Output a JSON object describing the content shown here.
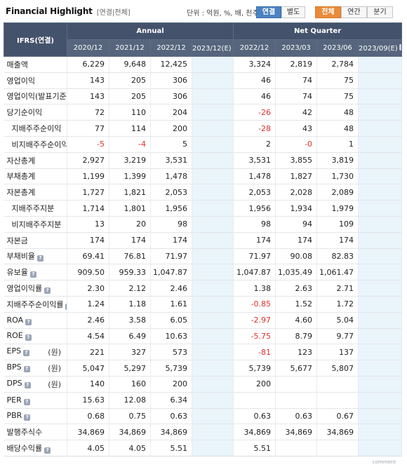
{
  "header": {
    "title": "Financial Highlight",
    "subtitle": "[연결|전체]",
    "unit": "단위 : 억원, %, 배, 천주",
    "buttons": {
      "consolidated": "연결",
      "separate": "별도",
      "all": "전체",
      "annual": "연간",
      "quarter": "분기"
    }
  },
  "table": {
    "ifrs_label": "IFRS(연결)",
    "group_annual": "Annual",
    "group_quarter": "Net Quarter",
    "columns": [
      "2020/12",
      "2021/12",
      "2022/12",
      "2023/12(E)",
      "2022/12",
      "2023/03",
      "2023/06",
      "2023/09(E)"
    ],
    "rows": [
      {
        "label": "매출액",
        "values": [
          "6,229",
          "9,648",
          "12,425",
          "",
          "3,324",
          "2,819",
          "2,784",
          ""
        ]
      },
      {
        "label": "영업이익",
        "values": [
          "143",
          "205",
          "306",
          "",
          "46",
          "74",
          "75",
          ""
        ]
      },
      {
        "label": "영업이익(발표기준)",
        "values": [
          "143",
          "205",
          "306",
          "",
          "46",
          "74",
          "75",
          ""
        ]
      },
      {
        "label": "당기순이익",
        "values": [
          "72",
          "110",
          "204",
          "",
          "-26",
          "42",
          "48",
          ""
        ]
      },
      {
        "label": "지배주주순이익",
        "sub": true,
        "values": [
          "77",
          "114",
          "200",
          "",
          "-28",
          "43",
          "48",
          ""
        ]
      },
      {
        "label": "비지배주주순이익",
        "sub": true,
        "values": [
          "-5",
          "-4",
          "5",
          "",
          "2",
          "-0",
          "1",
          ""
        ]
      },
      {
        "label": "자산총계",
        "values": [
          "2,927",
          "3,219",
          "3,531",
          "",
          "3,531",
          "3,855",
          "3,819",
          ""
        ]
      },
      {
        "label": "부채총계",
        "values": [
          "1,199",
          "1,399",
          "1,478",
          "",
          "1,478",
          "1,827",
          "1,730",
          ""
        ]
      },
      {
        "label": "자본총계",
        "values": [
          "1,727",
          "1,821",
          "2,053",
          "",
          "2,053",
          "2,028",
          "2,089",
          ""
        ]
      },
      {
        "label": "지배주주지분",
        "sub": true,
        "values": [
          "1,714",
          "1,801",
          "1,956",
          "",
          "1,956",
          "1,934",
          "1,979",
          ""
        ]
      },
      {
        "label": "비지배주주지분",
        "sub": true,
        "values": [
          "13",
          "20",
          "98",
          "",
          "98",
          "94",
          "109",
          ""
        ]
      },
      {
        "label": "자본금",
        "values": [
          "174",
          "174",
          "174",
          "",
          "174",
          "174",
          "174",
          ""
        ]
      },
      {
        "label": "부채비율",
        "info": true,
        "values": [
          "69.41",
          "76.81",
          "71.97",
          "",
          "71.97",
          "90.08",
          "82.83",
          ""
        ]
      },
      {
        "label": "유보율",
        "info": true,
        "values": [
          "909.50",
          "959.33",
          "1,047.87",
          "",
          "1,047.87",
          "1,035.49",
          "1,061.47",
          ""
        ]
      },
      {
        "label": "영업이익률",
        "info": true,
        "values": [
          "2.30",
          "2.12",
          "2.46",
          "",
          "1.38",
          "2.63",
          "2.71",
          ""
        ]
      },
      {
        "label": "지배주주순이익률",
        "info": true,
        "values": [
          "1.24",
          "1.18",
          "1.61",
          "",
          "-0.85",
          "1.52",
          "1.72",
          ""
        ]
      },
      {
        "label": "ROA",
        "info": true,
        "values": [
          "2.46",
          "3.58",
          "6.05",
          "",
          "-2.97",
          "4.60",
          "5.04",
          ""
        ]
      },
      {
        "label": "ROE",
        "info": true,
        "values": [
          "4.54",
          "6.49",
          "10.63",
          "",
          "-5.75",
          "8.79",
          "9.77",
          ""
        ]
      },
      {
        "label": "EPS",
        "info": true,
        "unit": "(원)",
        "values": [
          "221",
          "327",
          "573",
          "",
          "-81",
          "123",
          "137",
          ""
        ]
      },
      {
        "label": "BPS",
        "info": true,
        "unit": "(원)",
        "values": [
          "5,047",
          "5,297",
          "5,739",
          "",
          "5,739",
          "5,677",
          "5,807",
          ""
        ]
      },
      {
        "label": "DPS",
        "info": true,
        "unit": "(원)",
        "values": [
          "140",
          "160",
          "200",
          "",
          "200",
          "",
          "",
          ""
        ]
      },
      {
        "label": "PER",
        "info": true,
        "values": [
          "15.63",
          "12.08",
          "6.34",
          "",
          "",
          "",
          "",
          ""
        ]
      },
      {
        "label": "PBR",
        "info": true,
        "values": [
          "0.68",
          "0.75",
          "0.63",
          "",
          "0.63",
          "0.63",
          "0.67",
          ""
        ]
      },
      {
        "label": "발행주식수",
        "values": [
          "34,869",
          "34,869",
          "34,869",
          "",
          "34,869",
          "34,869",
          "34,869",
          ""
        ]
      },
      {
        "label": "배당수익률",
        "info": true,
        "values": [
          "4.05",
          "4.05",
          "5.51",
          "",
          "5.51",
          "",
          "",
          ""
        ]
      }
    ]
  },
  "footer": {
    "label": "comment"
  },
  "colors": {
    "header_bg": "#44536b",
    "estimate_col_bg": "#eaf4fb",
    "negative": "#e0302e",
    "btn_blue": "#4a82c3",
    "btn_orange": "#e98b3a"
  }
}
